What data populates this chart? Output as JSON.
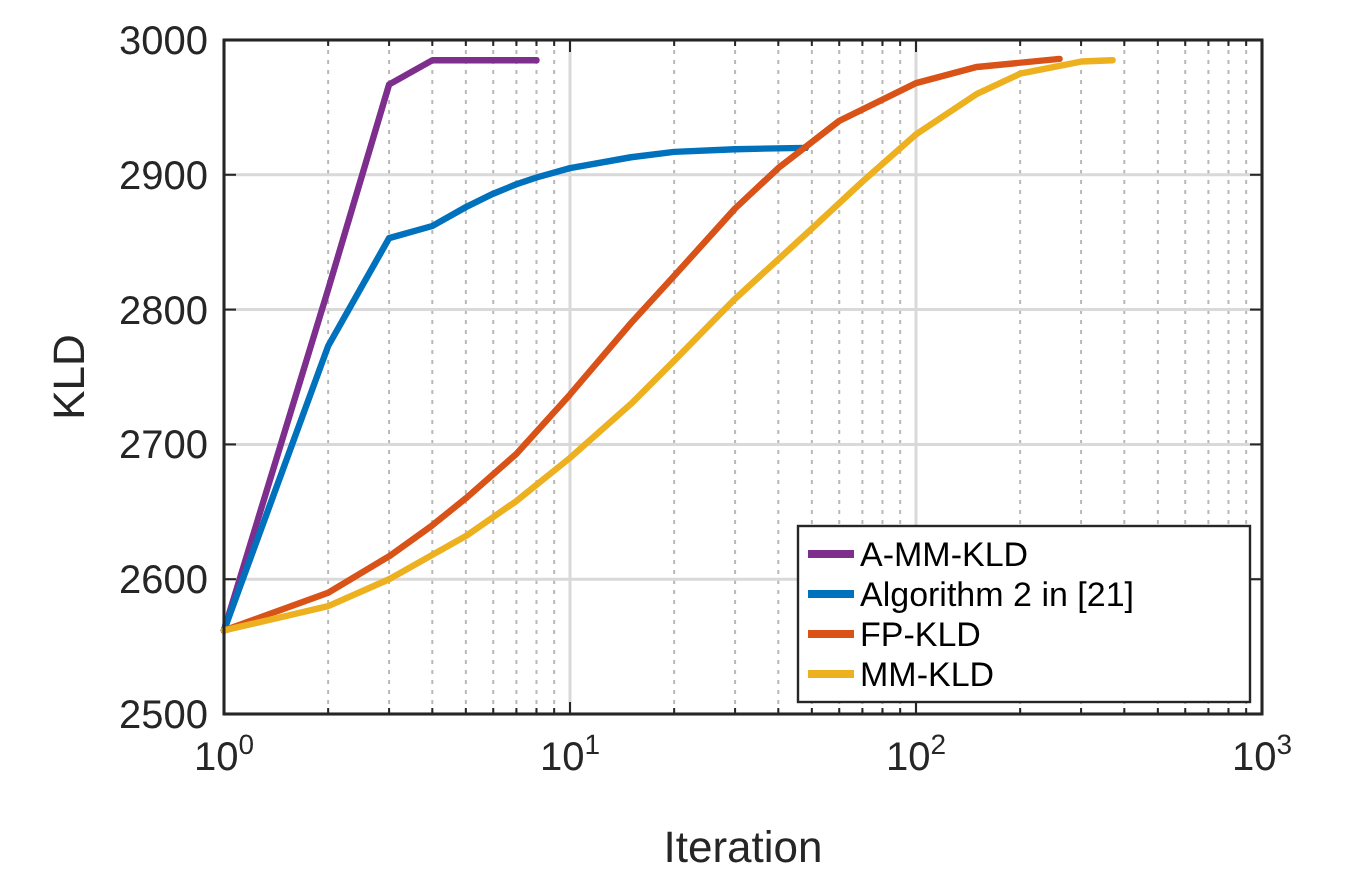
{
  "chart_data": {
    "type": "line",
    "xlabel": "Iteration",
    "ylabel": "KLD",
    "log": "x",
    "grid": true,
    "legend": "bottom right",
    "line_style": "solid",
    "marker": "none",
    "xlim": [
      1,
      1000
    ],
    "xticks": [
      {
        "value": 1,
        "label": "10$^{0}$"
      },
      {
        "value": 10,
        "label": "10$^{1}$"
      },
      {
        "value": 100,
        "label": "10$^{2}$"
      },
      {
        "value": 1000,
        "label": "10$^{3}$"
      }
    ],
    "ylim": [
      2500,
      3000
    ],
    "yticks": [
      2500,
      2600,
      2700,
      2800,
      2900,
      3000
    ],
    "series": [
      {
        "name": "A-MM-KLD",
        "color": "#7e2f8e",
        "x": [
          1,
          2,
          3,
          4,
          8
        ],
        "values": [
          2562,
          2815,
          2967,
          2985,
          2985
        ]
      },
      {
        "name": "Algorithm 2 in [21]",
        "color": "#0072bd",
        "x": [
          1,
          2,
          3,
          4,
          5,
          6,
          7,
          8,
          10,
          15,
          20,
          30,
          48
        ],
        "values": [
          2562,
          2773,
          2853,
          2862,
          2876,
          2886,
          2893,
          2898,
          2905,
          2913,
          2917,
          2919,
          2920
        ]
      },
      {
        "name": "FP-KLD",
        "color": "#d95319",
        "x": [
          1,
          2,
          3,
          4,
          5,
          7,
          10,
          15,
          20,
          30,
          40,
          60,
          100,
          150,
          260
        ],
        "values": [
          2562,
          2590,
          2617,
          2640,
          2660,
          2693,
          2737,
          2790,
          2825,
          2875,
          2905,
          2940,
          2968,
          2980,
          2986
        ]
      },
      {
        "name": "MM-KLD",
        "color": "#edb120",
        "x": [
          1,
          2,
          3,
          5,
          7,
          10,
          15,
          20,
          30,
          50,
          70,
          100,
          150,
          200,
          300,
          370
        ],
        "values": [
          2562,
          2580,
          2600,
          2632,
          2658,
          2690,
          2730,
          2762,
          2808,
          2860,
          2895,
          2930,
          2960,
          2975,
          2984,
          2985
        ]
      }
    ]
  }
}
